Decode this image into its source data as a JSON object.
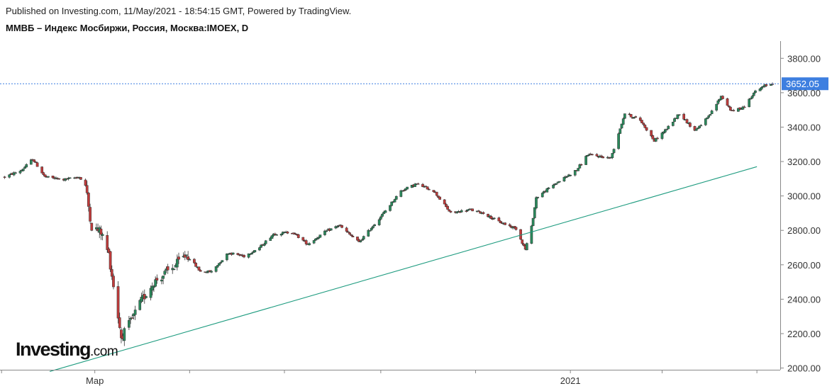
{
  "header": {
    "published": "Published on Investing.com, 11/May/2021 - 18:54:15 GMT, Powered by TradingView.",
    "symbol": "ММВБ – Индекс Мосбиржи, Россия, Москва:IMOEX, D"
  },
  "logo": {
    "brand": "Investing",
    "suffix": ".com"
  },
  "colors": {
    "up": "#2a8a5c",
    "down": "#c13b3b",
    "trend": "#1f9c80",
    "last": "#3d7fe0",
    "axis": "#888888"
  },
  "chart_data": {
    "type": "candlestick",
    "ylim": [
      1990,
      3900
    ],
    "yticks": [
      "2000.00",
      "2200.00",
      "2400.00",
      "2600.00",
      "2800.00",
      "3000.00",
      "3200.00",
      "3400.00",
      "3600.00",
      "3800.00"
    ],
    "xticks": [
      {
        "label": "",
        "date": "2020-01"
      },
      {
        "label": "Мар",
        "date": "2020-03"
      },
      {
        "label": "",
        "date": "2020-05"
      },
      {
        "label": "",
        "date": "2020-07"
      },
      {
        "label": "",
        "date": "2020-09"
      },
      {
        "label": "",
        "date": "2020-11"
      },
      {
        "label": "2021",
        "date": "2021-01"
      },
      {
        "label": "",
        "date": "2021-03"
      },
      {
        "label": "",
        "date": "2021-05"
      }
    ],
    "last_price": "3652.05",
    "trendline": {
      "from": {
        "date": "2020-02",
        "value": 1980
      },
      "to": {
        "date": "2021-05",
        "value": 3170
      }
    },
    "anchors": [
      [
        "2020-01-03",
        3110
      ],
      [
        "2020-01-14",
        3150
      ],
      [
        "2020-01-21",
        3215
      ],
      [
        "2020-01-29",
        3110
      ],
      [
        "2020-02-10",
        3095
      ],
      [
        "2020-02-20",
        3110
      ],
      [
        "2020-02-24",
        3060
      ],
      [
        "2020-02-28",
        2820
      ],
      [
        "2020-03-05",
        2790
      ],
      [
        "2020-03-10",
        2660
      ],
      [
        "2020-03-18",
        2180
      ],
      [
        "2020-03-23",
        2250
      ],
      [
        "2020-03-31",
        2390
      ],
      [
        "2020-04-08",
        2500
      ],
      [
        "2020-04-20",
        2580
      ],
      [
        "2020-04-29",
        2660
      ],
      [
        "2020-05-08",
        2560
      ],
      [
        "2020-05-15",
        2560
      ],
      [
        "2020-05-26",
        2670
      ],
      [
        "2020-06-05",
        2650
      ],
      [
        "2020-06-15",
        2700
      ],
      [
        "2020-06-24",
        2780
      ],
      [
        "2020-07-06",
        2790
      ],
      [
        "2020-07-16",
        2720
      ],
      [
        "2020-07-27",
        2790
      ],
      [
        "2020-08-05",
        2830
      ],
      [
        "2020-08-18",
        2730
      ],
      [
        "2020-09-01",
        2880
      ],
      [
        "2020-09-14",
        3030
      ],
      [
        "2020-09-24",
        3070
      ],
      [
        "2020-10-05",
        3030
      ],
      [
        "2020-10-16",
        2900
      ],
      [
        "2020-10-28",
        2920
      ],
      [
        "2020-11-06",
        2900
      ],
      [
        "2020-11-16",
        2850
      ],
      [
        "2020-11-27",
        2810
      ],
      [
        "2020-12-03",
        2690
      ],
      [
        "2020-12-07",
        2820
      ],
      [
        "2020-12-10",
        2990
      ],
      [
        "2020-12-22",
        3070
      ],
      [
        "2021-01-05",
        3150
      ],
      [
        "2021-01-12",
        3240
      ],
      [
        "2021-01-27",
        3220
      ],
      [
        "2021-02-05",
        3480
      ],
      [
        "2021-02-15",
        3440
      ],
      [
        "2021-02-24",
        3320
      ],
      [
        "2021-03-05",
        3400
      ],
      [
        "2021-03-12",
        3480
      ],
      [
        "2021-03-22",
        3380
      ],
      [
        "2021-03-31",
        3460
      ],
      [
        "2021-04-08",
        3580
      ],
      [
        "2021-04-15",
        3490
      ],
      [
        "2021-04-23",
        3520
      ],
      [
        "2021-04-29",
        3600
      ],
      [
        "2021-05-06",
        3640
      ],
      [
        "2021-05-11",
        3652
      ]
    ]
  }
}
